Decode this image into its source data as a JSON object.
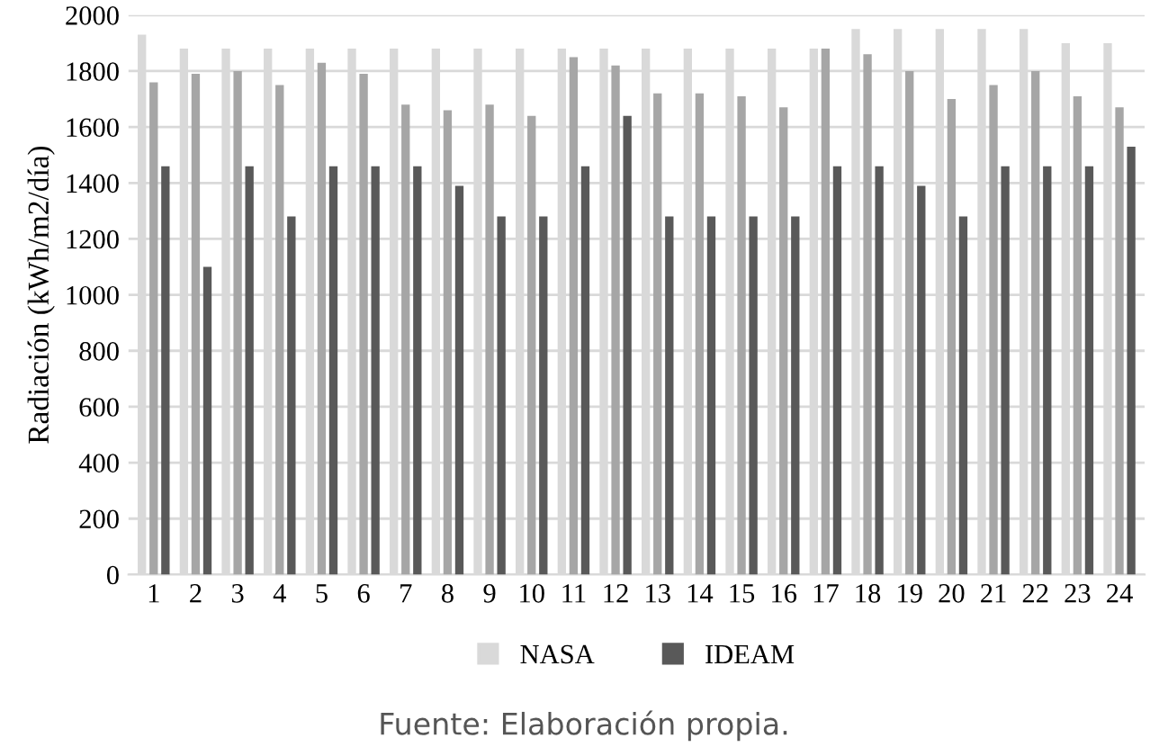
{
  "chart_data": {
    "type": "bar",
    "ylabel": "Radiación (kWh/m2/día)",
    "categories": [
      "1",
      "2",
      "3",
      "4",
      "5",
      "6",
      "7",
      "8",
      "9",
      "10",
      "11",
      "12",
      "13",
      "14",
      "15",
      "16",
      "17",
      "18",
      "19",
      "20",
      "21",
      "22",
      "23",
      "24"
    ],
    "series": [
      {
        "name": "NASA",
        "color": "#d9d9d9",
        "values": [
          1930,
          1880,
          1880,
          1880,
          1880,
          1880,
          1880,
          1880,
          1880,
          1880,
          1880,
          1880,
          1880,
          1880,
          1880,
          1880,
          1880,
          1950,
          1950,
          1950,
          1950,
          1950,
          1900,
          1900
        ]
      },
      {
        "color": "#a6a6a6",
        "values": [
          1760,
          1790,
          1800,
          1750,
          1830,
          1790,
          1680,
          1660,
          1680,
          1640,
          1850,
          1820,
          1720,
          1720,
          1710,
          1670,
          1880,
          1860,
          1800,
          1700,
          1750,
          1800,
          1710,
          1670
        ]
      },
      {
        "name": "IDEAM",
        "color": "#595959",
        "values": [
          1460,
          1100,
          1460,
          1280,
          1460,
          1460,
          1460,
          1390,
          1280,
          1280,
          1460,
          1640,
          1280,
          1280,
          1280,
          1280,
          1460,
          1460,
          1390,
          1280,
          1460,
          1460,
          1460,
          1530
        ]
      }
    ],
    "ylim": [
      0,
      2000
    ],
    "yticks": [
      0,
      200,
      400,
      600,
      800,
      1000,
      1200,
      1400,
      1600,
      1800,
      2000
    ],
    "grid": "y",
    "legend": "bottom",
    "annotations": [
      "Fuente: Elaboración propia."
    ]
  }
}
